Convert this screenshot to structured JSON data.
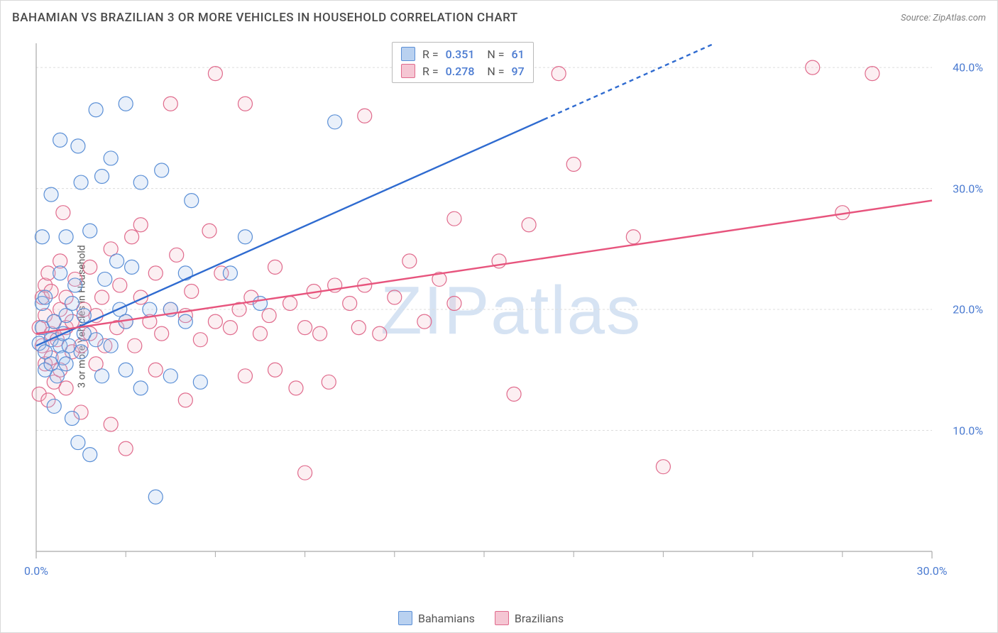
{
  "header": {
    "title": "BAHAMIAN VS BRAZILIAN 3 OR MORE VEHICLES IN HOUSEHOLD CORRELATION CHART",
    "source": "Source: ZipAtlas.com"
  },
  "watermark": "ZIPatlas",
  "chart": {
    "type": "scatter",
    "ylabel": "3 or more Vehicles in Household",
    "xlim": [
      0,
      30
    ],
    "ylim": [
      0,
      42
    ],
    "xticks": [
      {
        "v": 0,
        "label": "0.0%"
      },
      {
        "v": 30,
        "label": "30.0%"
      }
    ],
    "xticks_minor": [
      3,
      6,
      9,
      12,
      15,
      18,
      21,
      24,
      27
    ],
    "yticks": [
      {
        "v": 10,
        "label": "10.0%"
      },
      {
        "v": 20,
        "label": "20.0%"
      },
      {
        "v": 30,
        "label": "30.0%"
      },
      {
        "v": 40,
        "label": "40.0%"
      }
    ],
    "background_color": "#ffffff",
    "grid_color": "#dcdcdc",
    "axis_color": "#a9a9a9",
    "label_color": "#4b7bd1",
    "marker_radius": 10,
    "marker_stroke_width": 1.2,
    "marker_fill_opacity": 0.25,
    "series": {
      "bahamians": {
        "label": "Bahamians",
        "swatch_fill": "#b9d1f0",
        "swatch_stroke": "#5a8fd6",
        "marker_fill": "#a7c4ea",
        "marker_stroke": "#5a8fd6",
        "trend": {
          "color": "#2f6bd0",
          "width": 2.4,
          "p1": [
            0,
            17.0
          ],
          "p2": [
            30,
            50.0
          ],
          "dash_after_x": 17.0
        },
        "R": "0.351",
        "N": "61",
        "points": [
          [
            0.1,
            17.2
          ],
          [
            0.2,
            18.5
          ],
          [
            0.2,
            20.5
          ],
          [
            0.2,
            26.0
          ],
          [
            0.3,
            15.0
          ],
          [
            0.3,
            16.5
          ],
          [
            0.3,
            21.0
          ],
          [
            0.5,
            29.5
          ],
          [
            0.5,
            17.5
          ],
          [
            0.5,
            15.5
          ],
          [
            0.6,
            12.0
          ],
          [
            0.6,
            19.0
          ],
          [
            0.7,
            14.5
          ],
          [
            0.8,
            34.0
          ],
          [
            0.8,
            23.0
          ],
          [
            0.8,
            17.0
          ],
          [
            0.9,
            16.0
          ],
          [
            0.9,
            18.0
          ],
          [
            1.0,
            19.5
          ],
          [
            1.0,
            15.5
          ],
          [
            1.0,
            26.0
          ],
          [
            1.1,
            17.0
          ],
          [
            1.2,
            11.0
          ],
          [
            1.2,
            20.5
          ],
          [
            1.3,
            22.0
          ],
          [
            1.4,
            33.5
          ],
          [
            1.4,
            9.0
          ],
          [
            1.5,
            30.5
          ],
          [
            1.5,
            16.5
          ],
          [
            1.6,
            19.5
          ],
          [
            1.6,
            18.0
          ],
          [
            1.8,
            26.5
          ],
          [
            1.8,
            8.0
          ],
          [
            2.0,
            17.5
          ],
          [
            2.0,
            36.5
          ],
          [
            2.2,
            14.5
          ],
          [
            2.2,
            31.0
          ],
          [
            2.3,
            22.5
          ],
          [
            2.5,
            17.0
          ],
          [
            2.5,
            32.5
          ],
          [
            2.7,
            24.0
          ],
          [
            2.8,
            20.0
          ],
          [
            3.0,
            37.0
          ],
          [
            3.0,
            15.0
          ],
          [
            3.0,
            19.0
          ],
          [
            3.2,
            23.5
          ],
          [
            3.5,
            13.5
          ],
          [
            3.5,
            30.5
          ],
          [
            3.8,
            20.0
          ],
          [
            4.0,
            4.5
          ],
          [
            4.2,
            31.5
          ],
          [
            4.5,
            20.0
          ],
          [
            4.5,
            14.5
          ],
          [
            5.0,
            19.0
          ],
          [
            5.0,
            23.0
          ],
          [
            5.2,
            29.0
          ],
          [
            5.5,
            14.0
          ],
          [
            6.5,
            23.0
          ],
          [
            7.0,
            26.0
          ],
          [
            7.5,
            20.5
          ],
          [
            10.0,
            35.5
          ]
        ]
      },
      "brazilians": {
        "label": "Brazilians",
        "swatch_fill": "#f5c6d3",
        "swatch_stroke": "#e06a8c",
        "marker_fill": "#f4bfcd",
        "marker_stroke": "#e06a8c",
        "trend": {
          "color": "#e7547d",
          "width": 2.4,
          "p1": [
            0,
            18.0
          ],
          "p2": [
            30,
            29.0
          ]
        },
        "R": "0.278",
        "N": "97",
        "points": [
          [
            0.1,
            18.5
          ],
          [
            0.1,
            13.0
          ],
          [
            0.2,
            21.0
          ],
          [
            0.2,
            17.0
          ],
          [
            0.3,
            19.5
          ],
          [
            0.3,
            15.5
          ],
          [
            0.3,
            22.0
          ],
          [
            0.4,
            12.5
          ],
          [
            0.4,
            23.0
          ],
          [
            0.5,
            18.0
          ],
          [
            0.5,
            16.0
          ],
          [
            0.5,
            21.5
          ],
          [
            0.6,
            14.0
          ],
          [
            0.6,
            19.0
          ],
          [
            0.7,
            17.5
          ],
          [
            0.8,
            20.0
          ],
          [
            0.8,
            24.0
          ],
          [
            0.8,
            15.0
          ],
          [
            0.9,
            28.0
          ],
          [
            1.0,
            18.5
          ],
          [
            1.0,
            13.5
          ],
          [
            1.0,
            21.0
          ],
          [
            1.2,
            16.5
          ],
          [
            1.2,
            19.0
          ],
          [
            1.3,
            22.5
          ],
          [
            1.5,
            17.0
          ],
          [
            1.5,
            11.5
          ],
          [
            1.6,
            20.0
          ],
          [
            1.8,
            18.0
          ],
          [
            1.8,
            23.5
          ],
          [
            2.0,
            15.5
          ],
          [
            2.0,
            19.5
          ],
          [
            2.2,
            21.0
          ],
          [
            2.3,
            17.0
          ],
          [
            2.5,
            25.0
          ],
          [
            2.5,
            10.5
          ],
          [
            2.7,
            18.5
          ],
          [
            2.8,
            22.0
          ],
          [
            3.0,
            19.0
          ],
          [
            3.0,
            8.5
          ],
          [
            3.2,
            26.0
          ],
          [
            3.3,
            17.0
          ],
          [
            3.5,
            21.0
          ],
          [
            3.5,
            27.0
          ],
          [
            3.8,
            19.0
          ],
          [
            4.0,
            15.0
          ],
          [
            4.0,
            23.0
          ],
          [
            4.2,
            18.0
          ],
          [
            4.5,
            20.0
          ],
          [
            4.5,
            37.0
          ],
          [
            4.7,
            24.5
          ],
          [
            5.0,
            19.5
          ],
          [
            5.0,
            12.5
          ],
          [
            5.2,
            21.5
          ],
          [
            5.5,
            17.5
          ],
          [
            5.8,
            26.5
          ],
          [
            6.0,
            19.0
          ],
          [
            6.0,
            39.5
          ],
          [
            6.2,
            23.0
          ],
          [
            6.5,
            18.5
          ],
          [
            6.8,
            20.0
          ],
          [
            7.0,
            37.0
          ],
          [
            7.0,
            14.5
          ],
          [
            7.2,
            21.0
          ],
          [
            7.5,
            18.0
          ],
          [
            7.8,
            19.5
          ],
          [
            8.0,
            23.5
          ],
          [
            8.0,
            15.0
          ],
          [
            8.5,
            20.5
          ],
          [
            8.7,
            13.5
          ],
          [
            9.0,
            18.5
          ],
          [
            9.0,
            6.5
          ],
          [
            9.3,
            21.5
          ],
          [
            9.5,
            18.0
          ],
          [
            9.8,
            14.0
          ],
          [
            10.0,
            22.0
          ],
          [
            10.5,
            20.5
          ],
          [
            10.8,
            18.5
          ],
          [
            11.0,
            22.0
          ],
          [
            11.0,
            36.0
          ],
          [
            11.5,
            18.0
          ],
          [
            12.0,
            21.0
          ],
          [
            12.5,
            24.0
          ],
          [
            13.0,
            19.0
          ],
          [
            13.5,
            22.5
          ],
          [
            14.0,
            27.5
          ],
          [
            14.0,
            20.5
          ],
          [
            15.5,
            24.0
          ],
          [
            16.0,
            13.0
          ],
          [
            16.5,
            27.0
          ],
          [
            17.5,
            39.5
          ],
          [
            18.0,
            32.0
          ],
          [
            20.0,
            26.0
          ],
          [
            21.0,
            7.0
          ],
          [
            26.0,
            40.0
          ],
          [
            27.0,
            28.0
          ],
          [
            28.0,
            39.5
          ]
        ]
      }
    }
  },
  "legend_top": {
    "rows": [
      {
        "series": "bahamians"
      },
      {
        "series": "brazilians"
      }
    ]
  },
  "legend_bottom": {
    "items": [
      {
        "series": "bahamians"
      },
      {
        "series": "brazilians"
      }
    ]
  }
}
